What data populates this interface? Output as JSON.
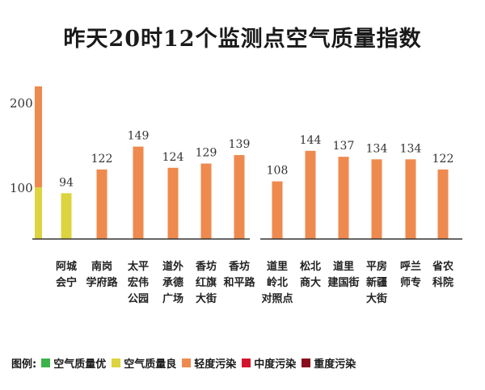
{
  "chart_data": {
    "type": "bar",
    "title": "昨天20时12个监测点空气质量指数",
    "ylim": [
      40,
      220
    ],
    "yticks": [
      100,
      200
    ],
    "categories": [
      [
        "阿城",
        "会宁"
      ],
      [
        "南岗",
        "学府路"
      ],
      [
        "太平",
        "宏伟",
        "公园"
      ],
      [
        "道外",
        "承德",
        "广场"
      ],
      [
        "香坊",
        "红旗",
        "大街"
      ],
      [
        "香坊",
        "和平路"
      ],
      [
        "道里",
        "岭北",
        "对照点"
      ],
      [
        "松北",
        "商大"
      ],
      [
        "道里",
        "建国街"
      ],
      [
        "平房",
        "新疆",
        "大街"
      ],
      [
        "呼兰",
        "师专"
      ],
      [
        "省农",
        "科院"
      ]
    ],
    "values": [
      94,
      122,
      149,
      124,
      129,
      139,
      108,
      144,
      137,
      134,
      134,
      122
    ],
    "grades": [
      "良",
      "轻度污染",
      "轻度污染",
      "轻度污染",
      "轻度污染",
      "轻度污染",
      "轻度污染",
      "轻度污染",
      "轻度污染",
      "轻度污染",
      "轻度污染",
      "轻度污染"
    ],
    "scale_bar_bands": [
      {
        "from": 40,
        "to": 101,
        "grade": "良"
      },
      {
        "from": 101,
        "to": 220,
        "grade": "轻度污染"
      }
    ],
    "legend": {
      "label": "图例:",
      "entries": [
        {
          "name": "空气质量优",
          "color": "#3db34a"
        },
        {
          "name": "空气质量良",
          "color": "#dcd43e"
        },
        {
          "name": "轻度污染",
          "color": "#ee8a4e"
        },
        {
          "name": "中度污染",
          "color": "#d4142b"
        },
        {
          "name": "重度污染",
          "color": "#8b0d1c"
        }
      ]
    },
    "grade_colors": {
      "良": "#dcd43e",
      "轻度污染": "#ee8a4e"
    }
  }
}
